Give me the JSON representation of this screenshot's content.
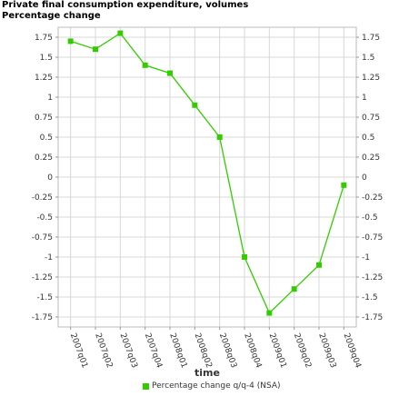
{
  "chart_data": {
    "type": "line",
    "title": "Private final consumption expenditure, volumes",
    "subtitle": "Percentage change",
    "xlabel": "time",
    "ylabel": "",
    "categories": [
      "2007q01",
      "2007q02",
      "2007q03",
      "2007q04",
      "2008q01",
      "2008q02",
      "2008q03",
      "2008q04",
      "2009q01",
      "2009q02",
      "2009q03",
      "2009q04"
    ],
    "series": [
      {
        "name": "Percentage change q/q-4 (NSA)",
        "values": [
          1.7,
          1.6,
          1.8,
          1.4,
          1.3,
          0.9,
          0.5,
          -1.0,
          -1.7,
          -1.4,
          -1.1,
          -0.1
        ],
        "color": "#33cc00"
      }
    ],
    "ylim": [
      -1.875,
      1.875
    ],
    "yticks": [
      "1.75",
      "1.5",
      "1.25",
      "1",
      "0.75",
      "0.5",
      "0.25",
      "0",
      "-0.25",
      "-0.5",
      "-0.75",
      "-1",
      "-1.25",
      "-1.5",
      "-1.75"
    ],
    "ytick_values": [
      1.75,
      1.5,
      1.25,
      1,
      0.75,
      0.5,
      0.25,
      0,
      -0.25,
      -0.5,
      -0.75,
      -1,
      -1.25,
      -1.5,
      -1.75
    ],
    "grid": true,
    "legend_position": "bottom-center",
    "grid_color": "#d8d8d8",
    "line_color": "#33cc00"
  }
}
